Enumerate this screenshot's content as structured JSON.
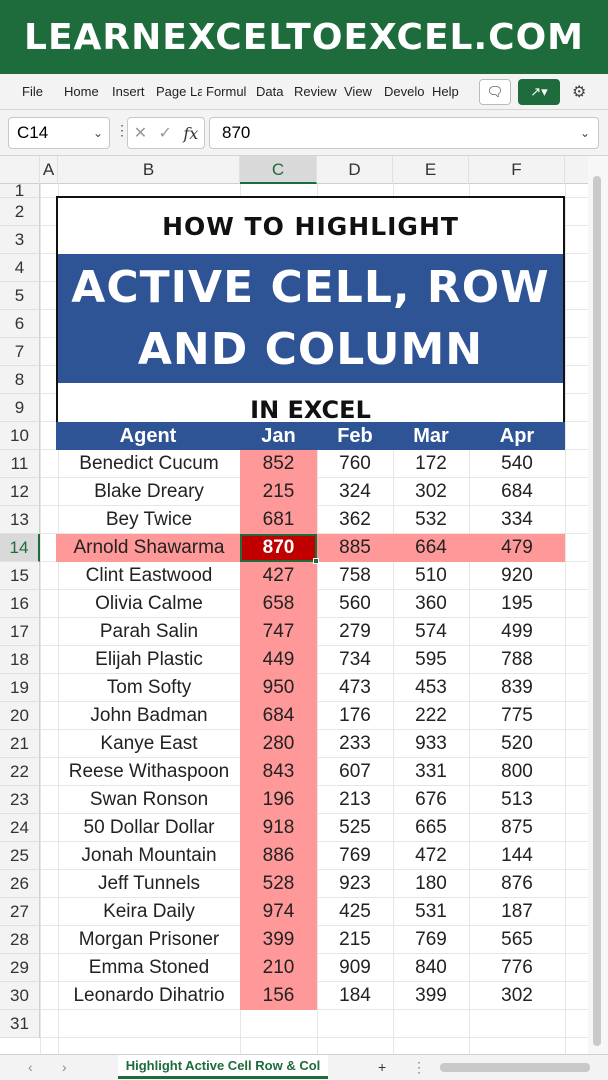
{
  "banner": {
    "text": "LEARNEXCELTOEXCEL.COM",
    "color": "#1e6b3c"
  },
  "ribbon": {
    "tabs": [
      "File",
      "Home",
      "Insert",
      "Page La",
      "Formul",
      "Data",
      "Review",
      "View",
      "Develo",
      "Help"
    ]
  },
  "formula_bar": {
    "name_box": "C14",
    "value": "870"
  },
  "columns": [
    "A",
    "B",
    "C",
    "D",
    "E",
    "F"
  ],
  "title_block": {
    "line1": "HOW TO HIGHLIGHT",
    "line2a": "ACTIVE CELL, ROW",
    "line2b": "AND COLUMN",
    "line3": "IN EXCEL",
    "band_color": "#2f5496"
  },
  "table": {
    "headers": [
      "Agent",
      "Jan",
      "Feb",
      "Mar",
      "Apr"
    ],
    "rows": [
      [
        "Benedict Cucum",
        "852",
        "760",
        "172",
        "540"
      ],
      [
        "Blake Dreary",
        "215",
        "324",
        "302",
        "684"
      ],
      [
        "Bey Twice",
        "681",
        "362",
        "532",
        "334"
      ],
      [
        "Arnold Shawarma",
        "870",
        "885",
        "664",
        "479"
      ],
      [
        "Clint Eastwood",
        "427",
        "758",
        "510",
        "920"
      ],
      [
        "Olivia Calme",
        "658",
        "560",
        "360",
        "195"
      ],
      [
        "Parah Salin",
        "747",
        "279",
        "574",
        "499"
      ],
      [
        "Elijah Plastic",
        "449",
        "734",
        "595",
        "788"
      ],
      [
        "Tom Softy",
        "950",
        "473",
        "453",
        "839"
      ],
      [
        "John Badman",
        "684",
        "176",
        "222",
        "775"
      ],
      [
        "Kanye East",
        "280",
        "233",
        "933",
        "520"
      ],
      [
        "Reese Withaspoon",
        "843",
        "607",
        "331",
        "800"
      ],
      [
        "Swan Ronson",
        "196",
        "213",
        "676",
        "513"
      ],
      [
        "50 Dollar Dollar",
        "918",
        "525",
        "665",
        "875"
      ],
      [
        "Jonah Mountain",
        "886",
        "769",
        "472",
        "144"
      ],
      [
        "Jeff Tunnels",
        "528",
        "923",
        "180",
        "876"
      ],
      [
        "Keira Daily",
        "974",
        "425",
        "531",
        "187"
      ],
      [
        "Morgan Prisoner",
        "399",
        "215",
        "769",
        "565"
      ],
      [
        "Emma Stoned",
        "210",
        "909",
        "840",
        "776"
      ],
      [
        "Leonardo Dihatrio",
        "156",
        "184",
        "399",
        "302"
      ]
    ],
    "active_row_index": 3,
    "highlight_color": "#ff9999",
    "active_color": "#c00000"
  },
  "sheet_tab": {
    "label": "Highlight Active Cell Row & Col"
  }
}
